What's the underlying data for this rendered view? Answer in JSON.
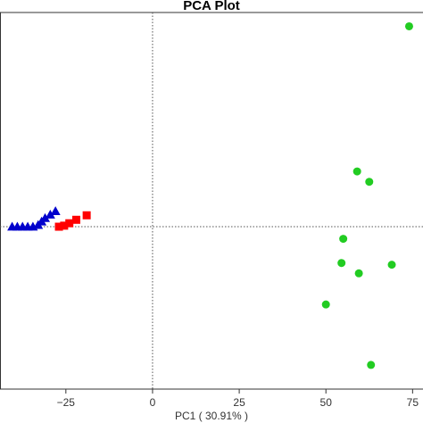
{
  "chart_data": {
    "type": "scatter",
    "title": "PCA Plot",
    "xlabel": "PC1 ( 30.91% )",
    "ylabel": "",
    "xlim": [
      -44,
      78
    ],
    "ylim": [
      -47,
      62
    ],
    "xticks": [
      -25,
      0,
      25,
      50,
      75
    ],
    "tick_labels": [
      "−25",
      "0",
      "25",
      "50",
      "75"
    ],
    "reference_lines": {
      "x": 0,
      "y": 0,
      "style": "dotted"
    },
    "grid": false,
    "series": [
      {
        "marker": "triangle",
        "color": "#0000cc",
        "points": [
          [
            -40.5,
            0
          ],
          [
            -39,
            0
          ],
          [
            -37.5,
            0
          ],
          [
            -36,
            0
          ],
          [
            -34.5,
            0
          ],
          [
            -33,
            0.5
          ],
          [
            -32,
            1.5
          ],
          [
            -31,
            2.5
          ],
          [
            -29.5,
            3.5
          ],
          [
            -28,
            4.5
          ]
        ]
      },
      {
        "marker": "square",
        "color": "#ff0000",
        "points": [
          [
            -27,
            0
          ],
          [
            -25.5,
            0.3
          ],
          [
            -24,
            1
          ],
          [
            -22,
            2
          ],
          [
            -19,
            3.3
          ]
        ]
      },
      {
        "marker": "circle",
        "color": "#22cc22",
        "points": [
          [
            74,
            58
          ],
          [
            59,
            16
          ],
          [
            62.5,
            13
          ],
          [
            55,
            -3.5
          ],
          [
            54.5,
            -10.5
          ],
          [
            59.5,
            -13.5
          ],
          [
            69,
            -11
          ],
          [
            50,
            -22.5
          ],
          [
            63,
            -40
          ]
        ]
      }
    ]
  }
}
